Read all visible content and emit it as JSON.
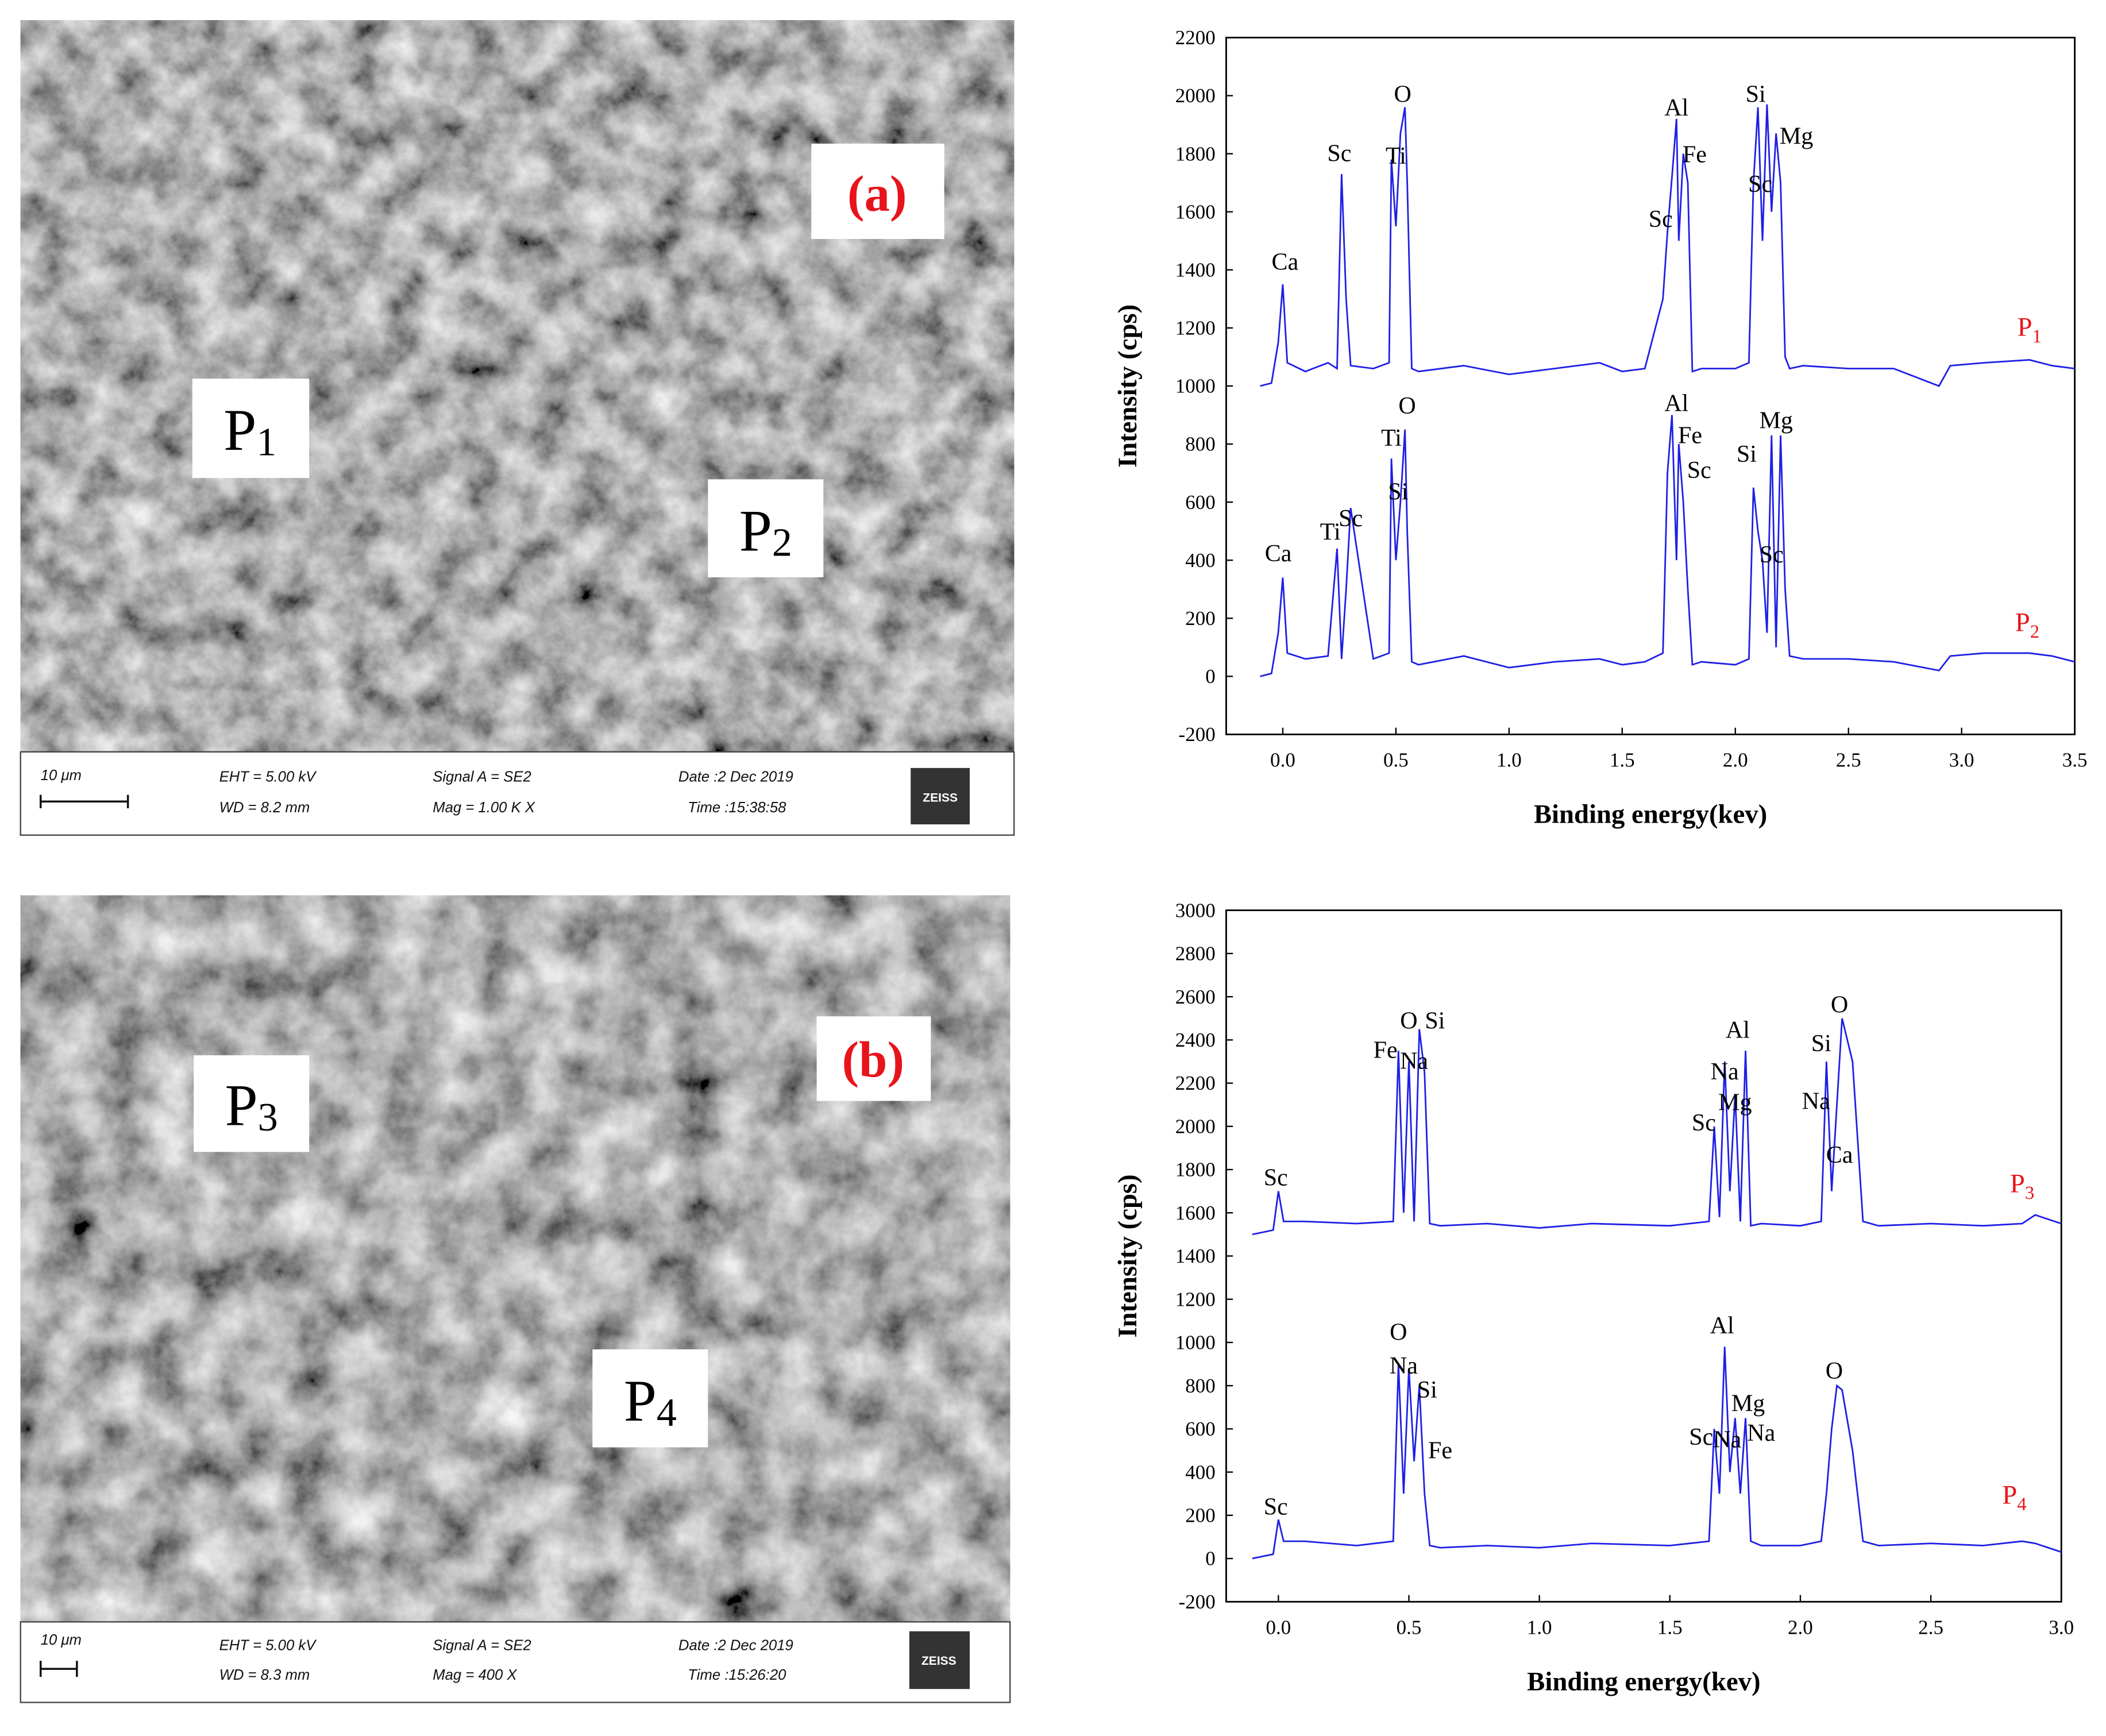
{
  "chart_data": [
    {
      "type": "line",
      "y_label": "Intensity (cps)",
      "x_label": "Binding energy(kev)",
      "xlim": [
        -0.25,
        3.5
      ],
      "ylim": [
        -200,
        2200
      ],
      "xticks": [
        {
          "value": 0,
          "label": "0.0"
        },
        0.5,
        {
          "value": 1,
          "label": "1.0"
        },
        1.5,
        {
          "value": 2,
          "label": "2.0"
        },
        2.5,
        {
          "value": 3,
          "label": "3.0"
        },
        3.5
      ],
      "yticks": [
        -200,
        0,
        200,
        400,
        600,
        800,
        1000,
        1200,
        1400,
        1600,
        1800,
        2000,
        2200
      ],
      "x": [
        -0.1,
        -0.05,
        -0.02,
        0,
        0.02,
        0.1,
        0.2,
        0.24,
        0.26,
        0.28,
        0.3,
        0.4,
        0.47,
        0.48,
        0.5,
        0.52,
        0.54,
        0.55,
        0.57,
        0.6,
        0.8,
        1.0,
        1.2,
        1.4,
        1.5,
        1.6,
        1.68,
        1.7,
        1.72,
        1.74,
        1.75,
        1.77,
        1.79,
        1.81,
        1.85,
        2.0,
        2.06,
        2.08,
        2.1,
        2.12,
        2.14,
        2.16,
        2.18,
        2.2,
        2.22,
        2.24,
        2.3,
        2.5,
        2.7,
        2.9,
        2.95,
        3.1,
        3.3,
        3.4,
        3.5
      ],
      "series": [
        {
          "color": "#1f1fe6",
          "label": {
            "text": "P",
            "sub": "1",
            "x": 3.3,
            "y": 1173
          },
          "values": [
            1000,
            1010,
            1150,
            1350,
            1080,
            1050,
            1080,
            1060,
            1730,
            1300,
            1070,
            1060,
            1080,
            1780,
            1550,
            1870,
            1960,
            1700,
            1060,
            1050,
            1070,
            1040,
            1060,
            1080,
            1050,
            1060,
            1300,
            1530,
            1720,
            1920,
            1500,
            1800,
            1700,
            1050,
            1060,
            1060,
            1080,
            1700,
            1960,
            1500,
            1970,
            1600,
            1870,
            1700,
            1100,
            1060,
            1070,
            1060,
            1060,
            1000,
            1070,
            1080,
            1090,
            1070,
            1060
          ]
        },
        {
          "color": "#1f1fe6",
          "label": {
            "text": "P",
            "sub": "2",
            "x": 3.29,
            "y": 156
          },
          "values": [
            0,
            10,
            150,
            340,
            80,
            60,
            70,
            440,
            60,
            300,
            580,
            60,
            80,
            750,
            400,
            600,
            850,
            500,
            50,
            40,
            70,
            30,
            50,
            60,
            40,
            50,
            80,
            700,
            900,
            400,
            800,
            600,
            300,
            40,
            50,
            40,
            60,
            650,
            500,
            400,
            150,
            830,
            100,
            830,
            300,
            70,
            60,
            60,
            50,
            20,
            70,
            80,
            80,
            70,
            50
          ]
        }
      ],
      "annotations": [
        {
          "text": "Ca",
          "x": 0.01,
          "y": 1428
        },
        {
          "text": "Sc",
          "x": 0.25,
          "y": 1802
        },
        {
          "text": "Ti",
          "x": 0.5,
          "y": 1793
        },
        {
          "text": "O",
          "x": 0.53,
          "y": 2006
        },
        {
          "text": "Al",
          "x": 1.74,
          "y": 1960
        },
        {
          "text": "Fe",
          "x": 1.82,
          "y": 1798
        },
        {
          "text": "Sc",
          "x": 1.67,
          "y": 1576
        },
        {
          "text": "Si",
          "x": 2.09,
          "y": 2006
        },
        {
          "text": "Mg",
          "x": 2.27,
          "y": 1862
        },
        {
          "text": "Sc",
          "x": 2.11,
          "y": 1696
        },
        {
          "text": "Ca",
          "x": -0.02,
          "y": 424
        },
        {
          "text": "Ti",
          "x": 0.21,
          "y": 498
        },
        {
          "text": "Sc",
          "x": 0.3,
          "y": 545
        },
        {
          "text": "Ti",
          "x": 0.48,
          "y": 822
        },
        {
          "text": "Si",
          "x": 0.51,
          "y": 637
        },
        {
          "text": "O",
          "x": 0.55,
          "y": 933
        },
        {
          "text": "Al",
          "x": 1.74,
          "y": 942
        },
        {
          "text": "Fe",
          "x": 1.8,
          "y": 831
        },
        {
          "text": "Sc",
          "x": 1.84,
          "y": 711
        },
        {
          "text": "Si",
          "x": 2.05,
          "y": 766
        },
        {
          "text": "Mg",
          "x": 2.18,
          "y": 882
        },
        {
          "text": "Sc",
          "x": 2.16,
          "y": 420
        }
      ]
    },
    {
      "type": "line",
      "y_label": "Intensity (cps)",
      "x_label": "Binding energy(kev)",
      "xlim": [
        -0.2,
        3.0
      ],
      "ylim": [
        -200,
        3000
      ],
      "xticks": [
        {
          "value": 0,
          "label": "0.0"
        },
        0.5,
        {
          "value": 1,
          "label": "1.0"
        },
        1.5,
        {
          "value": 2,
          "label": "2.0"
        },
        2.5,
        {
          "value": 3,
          "label": "3.0"
        }
      ],
      "yticks": [
        -200,
        0,
        200,
        400,
        600,
        800,
        1000,
        1200,
        1400,
        1600,
        1800,
        2000,
        2200,
        2400,
        2600,
        2800,
        3000
      ],
      "x": [
        -0.1,
        -0.02,
        0,
        0.02,
        0.1,
        0.3,
        0.44,
        0.46,
        0.48,
        0.5,
        0.52,
        0.54,
        0.56,
        0.58,
        0.62,
        0.8,
        1.0,
        1.2,
        1.5,
        1.65,
        1.67,
        1.69,
        1.71,
        1.73,
        1.75,
        1.77,
        1.79,
        1.81,
        1.85,
        2.0,
        2.08,
        2.1,
        2.12,
        2.14,
        2.16,
        2.2,
        2.24,
        2.3,
        2.5,
        2.7,
        2.85,
        2.9,
        3.0
      ],
      "series": [
        {
          "color": "#1f1fe6",
          "label": {
            "text": "P",
            "sub": "3",
            "x": 2.85,
            "y": 1695
          },
          "values": [
            1500,
            1520,
            1700,
            1560,
            1560,
            1550,
            1560,
            2350,
            1600,
            2300,
            1560,
            2450,
            2250,
            1550,
            1540,
            1550,
            1530,
            1550,
            1540,
            1560,
            2000,
            1580,
            2300,
            1700,
            2150,
            1560,
            2350,
            1540,
            1550,
            1540,
            1560,
            2300,
            1700,
            2100,
            2500,
            2300,
            1560,
            1540,
            1550,
            1540,
            1550,
            1590,
            1550
          ]
        },
        {
          "color": "#1f1fe6",
          "label": {
            "text": "P",
            "sub": "4",
            "x": 2.82,
            "y": 254
          },
          "values": [
            0,
            20,
            180,
            80,
            80,
            60,
            80,
            900,
            300,
            880,
            450,
            800,
            300,
            60,
            50,
            60,
            50,
            70,
            60,
            80,
            600,
            300,
            980,
            400,
            650,
            300,
            650,
            80,
            60,
            60,
            80,
            300,
            600,
            800,
            780,
            500,
            80,
            60,
            70,
            60,
            80,
            70,
            30
          ]
        }
      ],
      "annotations": [
        {
          "text": "Sc",
          "x": -0.01,
          "y": 1764
        },
        {
          "text": "Fe",
          "x": 0.41,
          "y": 2354
        },
        {
          "text": "O",
          "x": 0.5,
          "y": 2490
        },
        {
          "text": "Na",
          "x": 0.52,
          "y": 2304
        },
        {
          "text": "Si",
          "x": 0.6,
          "y": 2490
        },
        {
          "text": "Al",
          "x": 1.76,
          "y": 2447
        },
        {
          "text": "Na",
          "x": 1.71,
          "y": 2254
        },
        {
          "text": "Mg",
          "x": 1.75,
          "y": 2112
        },
        {
          "text": "Sc",
          "x": 1.63,
          "y": 2018
        },
        {
          "text": "O",
          "x": 2.15,
          "y": 2565
        },
        {
          "text": "Si",
          "x": 2.08,
          "y": 2385
        },
        {
          "text": "Na",
          "x": 2.06,
          "y": 2118
        },
        {
          "text": "Ca",
          "x": 2.15,
          "y": 1869
        },
        {
          "text": "O",
          "x": 0.46,
          "y": 1049
        },
        {
          "text": "Na",
          "x": 0.48,
          "y": 894
        },
        {
          "text": "Si",
          "x": 0.57,
          "y": 782
        },
        {
          "text": "Fe",
          "x": 0.62,
          "y": 502
        },
        {
          "text": "Al",
          "x": 1.7,
          "y": 1080
        },
        {
          "text": "Mg",
          "x": 1.8,
          "y": 720
        },
        {
          "text": "Sc",
          "x": 1.62,
          "y": 564
        },
        {
          "text": "Na",
          "x": 1.72,
          "y": 552
        },
        {
          "text": "Na",
          "x": 1.85,
          "y": 583
        },
        {
          "text": "O",
          "x": 2.13,
          "y": 869
        },
        {
          "text": "Sc",
          "x": -0.01,
          "y": 241
        }
      ]
    }
  ],
  "images": [
    {
      "panel": "(a)",
      "points": [
        {
          "text": "P",
          "sub": "1"
        },
        {
          "text": "P",
          "sub": "2"
        }
      ],
      "info": {
        "scale": "10 μm",
        "eht": "EHT =  5.00 kV",
        "wd": "WD =  8.2 mm",
        "signal": "Signal A = SE2",
        "mag": "Mag =     1.00 K X",
        "date": "Date :2 Dec 2019",
        "time": "Time :15:38:58",
        "logo": "ZEISS"
      }
    },
    {
      "panel": "(b)",
      "points": [
        {
          "text": "P",
          "sub": "3"
        },
        {
          "text": "P",
          "sub": "4"
        }
      ],
      "info": {
        "scale": "10 μm",
        "eht": "EHT =  5.00 kV",
        "wd": "WD =  8.3 mm",
        "signal": "Signal A = SE2",
        "mag": "Mag =    400 X",
        "date": "Date :2 Dec 2019",
        "time": "Time :15:26:20",
        "logo": "ZEISS"
      }
    }
  ]
}
